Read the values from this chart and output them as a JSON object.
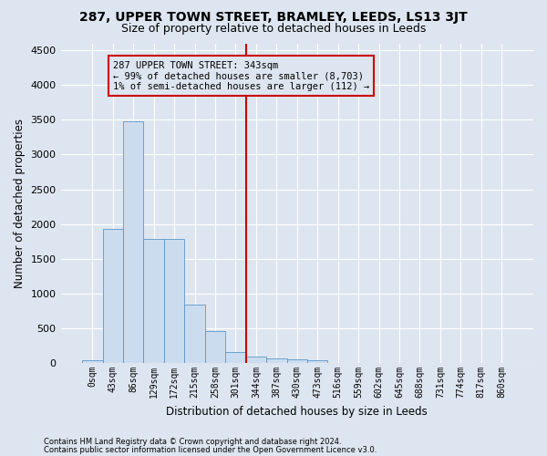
{
  "title": "287, UPPER TOWN STREET, BRAMLEY, LEEDS, LS13 3JT",
  "subtitle": "Size of property relative to detached houses in Leeds",
  "xlabel": "Distribution of detached houses by size in Leeds",
  "ylabel": "Number of detached properties",
  "footer1": "Contains HM Land Registry data © Crown copyright and database right 2024.",
  "footer2": "Contains public sector information licensed under the Open Government Licence v3.0.",
  "bar_labels": [
    "0sqm",
    "43sqm",
    "86sqm",
    "129sqm",
    "172sqm",
    "215sqm",
    "258sqm",
    "301sqm",
    "344sqm",
    "387sqm",
    "430sqm",
    "473sqm",
    "516sqm",
    "559sqm",
    "602sqm",
    "645sqm",
    "688sqm",
    "731sqm",
    "774sqm",
    "817sqm",
    "860sqm"
  ],
  "bar_values": [
    40,
    1930,
    3480,
    1780,
    1780,
    840,
    455,
    160,
    100,
    65,
    50,
    45,
    0,
    0,
    0,
    0,
    0,
    0,
    0,
    0,
    0
  ],
  "bar_color": "#ccdcef",
  "bar_edge_color": "#5a96c8",
  "vline_color": "#cc0000",
  "annotation_text": "287 UPPER TOWN STREET: 343sqm\n← 99% of detached houses are smaller (8,703)\n1% of semi-detached houses are larger (112) →",
  "annotation_box_color": "#cc0000",
  "ylim": [
    0,
    4600
  ],
  "yticks": [
    0,
    500,
    1000,
    1500,
    2000,
    2500,
    3000,
    3500,
    4000,
    4500
  ],
  "bg_color": "#dde6f0",
  "grid_color": "#ffffff",
  "title_fontsize": 10,
  "subtitle_fontsize": 9,
  "axis_label_fontsize": 8.5,
  "tick_fontsize": 8,
  "xtick_fontsize": 7
}
